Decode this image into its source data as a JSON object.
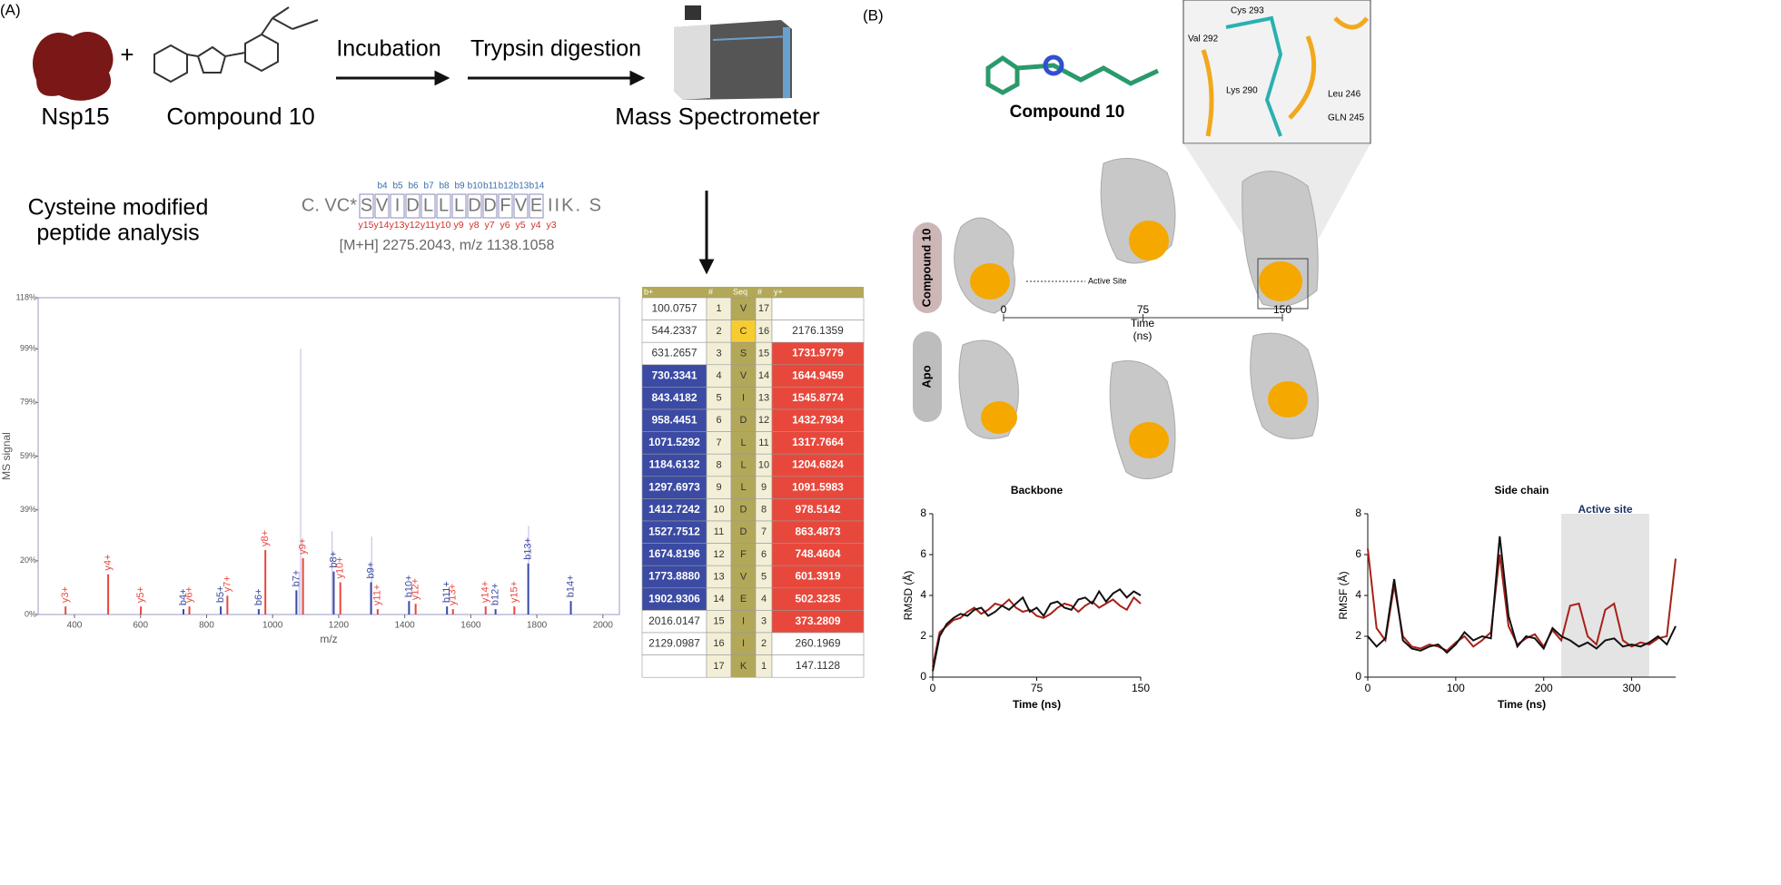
{
  "figure": {
    "panel_a": {
      "label": "(A)",
      "protein": "Nsp15",
      "plus": "+",
      "compound": "Compound 10",
      "step1": "Incubation",
      "step2": "Trypsin digestion",
      "instrument": "Mass Spectrometer",
      "analysis": [
        "Cysteine modified",
        "peptide analysis"
      ],
      "peptide": {
        "prefix": "C. VC*",
        "residues": [
          "S",
          "V",
          "I",
          "D",
          "L",
          "L",
          "L",
          "D",
          "D",
          "F",
          "V",
          "E"
        ],
        "suffix": "IIK. S",
        "b_ions": [
          "b4",
          "b5",
          "b6",
          "b7",
          "b8",
          "b9",
          "b10",
          "b11",
          "b12",
          "b13",
          "b14"
        ],
        "y_ions": [
          "y15",
          "y14",
          "y13",
          "y12",
          "y11",
          "y10",
          "y9",
          "y8",
          "y7",
          "y6",
          "y5",
          "y4",
          "y3"
        ],
        "mass": "[M+H] 2275.2043, m/z 1138.1058"
      }
    },
    "table": {
      "header": [
        "b+",
        "#",
        "Seq",
        "#",
        "y+"
      ],
      "rows": [
        [
          "100.0757",
          "1",
          "V",
          "17",
          null
        ],
        [
          "544.2337",
          "2",
          "C",
          "16",
          "2176.1359"
        ],
        [
          "631.2657",
          "3",
          "S",
          "15",
          "1731.9779"
        ],
        [
          "730.3341",
          "4",
          "V",
          "14",
          "1644.9459"
        ],
        [
          "843.4182",
          "5",
          "I",
          "13",
          "1545.8774"
        ],
        [
          "958.4451",
          "6",
          "D",
          "12",
          "1432.7934"
        ],
        [
          "1071.5292",
          "7",
          "L",
          "11",
          "1317.7664"
        ],
        [
          "1184.6132",
          "8",
          "L",
          "10",
          "1204.6824"
        ],
        [
          "1297.6973",
          "9",
          "L",
          "9",
          "1091.5983"
        ],
        [
          "1412.7242",
          "10",
          "D",
          "8",
          "978.5142"
        ],
        [
          "1527.7512",
          "11",
          "D",
          "7",
          "863.4873"
        ],
        [
          "1674.8196",
          "12",
          "F",
          "6",
          "748.4604"
        ],
        [
          "1773.8880",
          "13",
          "V",
          "5",
          "601.3919"
        ],
        [
          "1902.9306",
          "14",
          "E",
          "4",
          "502.3235"
        ],
        [
          "2016.0147",
          "15",
          "I",
          "3",
          "373.2809"
        ],
        [
          "2129.0987",
          "16",
          "I",
          "2",
          "260.1969"
        ],
        [
          null,
          "17",
          "K",
          "1",
          "147.1128"
        ]
      ],
      "b_color": "#3b4aa3",
      "y_color": "#e8483c",
      "modified_color": "#f7cc2e",
      "b_matched": [
        4,
        14
      ],
      "y_matched": [
        3,
        15
      ],
      "modified": 2
    },
    "panel_b": {
      "label": "(B)",
      "compound": "Compound 10",
      "residues": [
        "Cys 293",
        "Val 292",
        "Lys 290",
        "Leu 246",
        "GLN 245"
      ],
      "rows": [
        "Compound 10",
        "Apo"
      ],
      "active_site": "Active Site",
      "timeline": {
        "ticks": [
          0,
          75,
          150
        ],
        "label": "Time",
        "unit": "(ns)"
      }
    }
  },
  "chart_data": [
    {
      "type": "bar",
      "ylabel": "MS signal",
      "xlabel": "m/z",
      "xlim": [
        290,
        2050
      ],
      "xticks": [
        400,
        600,
        800,
        1000,
        1200,
        1400,
        1600,
        1800,
        2000
      ],
      "ylim": [
        0,
        118
      ],
      "yticks": [
        {
          "value": 0,
          "label": "0%"
        },
        {
          "value": 20,
          "label": "20%"
        },
        {
          "value": 39,
          "label": "39%"
        },
        {
          "value": 59,
          "label": "59%"
        },
        {
          "value": 79,
          "label": "79%"
        },
        {
          "value": 99,
          "label": "99%"
        },
        {
          "value": 118,
          "label": "118%"
        }
      ],
      "series": [
        {
          "color": "#c9c3e6",
          "x": [
            1080,
            1085,
            1180,
            1300,
            1775
          ],
          "values": [
            16,
            99,
            31,
            29,
            33
          ]
        },
        {
          "color": "#e8483c",
          "x": [
            373,
            502,
            601,
            748,
            863,
            978,
            1092,
            1205,
            1318,
            1433,
            1546,
            1645,
            1732
          ],
          "values": [
            3,
            15,
            3,
            3,
            7,
            24,
            21,
            12,
            2,
            4,
            2,
            3,
            3
          ],
          "labels": [
            "y3+",
            "y4+",
            "y5+",
            "y6+",
            "y7+",
            "y8+",
            "y9+",
            "y10+",
            "y11+",
            "y12+",
            "y13+",
            "y14+",
            "y15+"
          ]
        },
        {
          "color": "#3b4aa3",
          "x": [
            730,
            843,
            958,
            1072,
            1185,
            1298,
            1413,
            1528,
            1675,
            1774,
            1903
          ],
          "values": [
            2,
            3,
            2,
            9,
            16,
            12,
            5,
            3,
            2,
            19,
            5
          ],
          "labels": [
            "b4+",
            "b5+",
            "b6+",
            "b7+",
            "b8+",
            "b9+",
            "b10+",
            "b11+",
            "b12+",
            "b13+",
            "b14+"
          ]
        }
      ]
    },
    {
      "type": "line",
      "title": "Backbone",
      "ylabel": "RMSD (Å)",
      "xlabel": "Time (ns)",
      "xlim": [
        0,
        150
      ],
      "xticks": [
        0,
        75,
        150
      ],
      "ylim": [
        0,
        8
      ],
      "yticks": [
        0,
        2,
        4,
        6,
        8
      ],
      "x": [
        0,
        5,
        10,
        15,
        20,
        25,
        30,
        35,
        40,
        45,
        50,
        55,
        60,
        65,
        70,
        75,
        80,
        85,
        90,
        95,
        100,
        105,
        110,
        115,
        120,
        125,
        130,
        135,
        140,
        145,
        150
      ],
      "series": [
        {
          "color": "#a82018",
          "values": [
            0.5,
            2.2,
            2.5,
            2.8,
            2.9,
            3.2,
            3.4,
            3.1,
            3.3,
            3.6,
            3.5,
            3.8,
            3.4,
            3.2,
            3.3,
            3.0,
            2.9,
            3.1,
            3.4,
            3.6,
            3.5,
            3.2,
            3.5,
            3.7,
            3.4,
            3.6,
            3.8,
            3.5,
            3.3,
            3.9,
            3.6
          ]
        },
        {
          "color": "#111111",
          "values": [
            0.3,
            2.0,
            2.6,
            2.9,
            3.1,
            3.0,
            3.3,
            3.4,
            3.0,
            3.2,
            3.5,
            3.3,
            3.6,
            3.9,
            3.2,
            3.4,
            3.0,
            3.6,
            3.7,
            3.4,
            3.3,
            3.8,
            3.9,
            3.6,
            4.2,
            3.7,
            4.1,
            4.3,
            3.9,
            4.2,
            4.0
          ]
        }
      ]
    },
    {
      "type": "line",
      "title": "Side chain",
      "ylabel": "RMSF (Å)",
      "xlabel": "Time (ns)",
      "xlim": [
        0,
        350
      ],
      "xticks": [
        0,
        100,
        200,
        300
      ],
      "ylim": [
        0,
        8
      ],
      "yticks": [
        0,
        2,
        4,
        6,
        8
      ],
      "region": {
        "label": "Active site",
        "from": 220,
        "to": 320
      },
      "x": [
        0,
        10,
        20,
        30,
        40,
        50,
        60,
        70,
        80,
        90,
        100,
        110,
        120,
        130,
        140,
        150,
        160,
        170,
        180,
        190,
        200,
        210,
        220,
        230,
        240,
        250,
        260,
        270,
        280,
        290,
        300,
        310,
        320,
        330,
        340,
        350
      ],
      "series": [
        {
          "color": "#a82018",
          "values": [
            6.3,
            2.4,
            1.8,
            4.5,
            2.0,
            1.5,
            1.4,
            1.6,
            1.5,
            1.3,
            1.7,
            2.0,
            1.5,
            1.8,
            2.2,
            6.0,
            2.5,
            1.6,
            1.9,
            2.1,
            1.5,
            2.3,
            1.8,
            3.5,
            3.6,
            2.0,
            1.6,
            3.3,
            3.6,
            1.8,
            1.5,
            1.7,
            1.6,
            1.9,
            2.0,
            5.8
          ]
        },
        {
          "color": "#111111",
          "values": [
            2.0,
            1.5,
            1.9,
            4.8,
            1.8,
            1.4,
            1.3,
            1.5,
            1.6,
            1.2,
            1.6,
            2.2,
            1.8,
            2.0,
            1.9,
            6.9,
            3.0,
            1.5,
            2.0,
            1.9,
            1.4,
            2.4,
            2.0,
            1.8,
            1.5,
            1.7,
            1.4,
            1.8,
            1.9,
            1.5,
            1.6,
            1.5,
            1.7,
            2.0,
            1.6,
            2.5
          ]
        }
      ]
    }
  ]
}
